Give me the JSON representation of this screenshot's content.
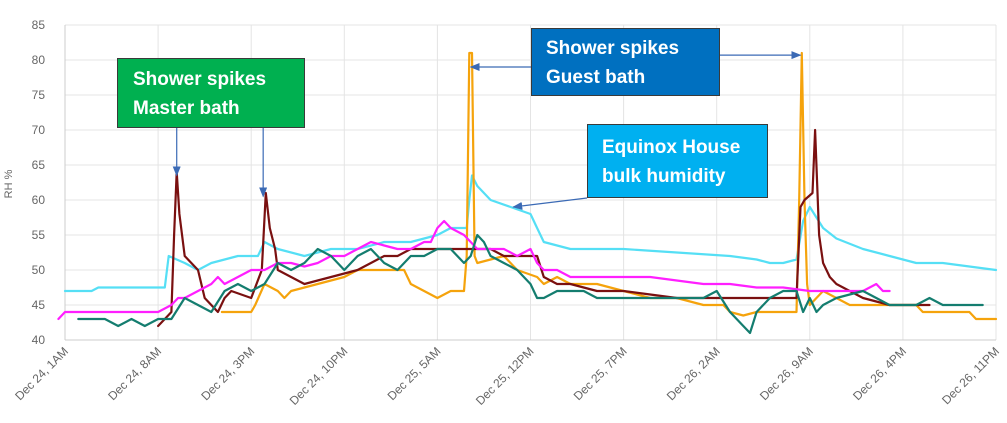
{
  "chart_data": {
    "type": "line",
    "title": "",
    "xlabel": "",
    "ylabel": "RH %",
    "ylim": [
      40,
      85
    ],
    "yticks": [
      40,
      45,
      50,
      55,
      60,
      65,
      70,
      75,
      80,
      85
    ],
    "xlim": [
      0,
      70
    ],
    "x_unit": "hours since Dec 24, 1AM",
    "xticks": [
      {
        "value": 0,
        "label": "Dec 24, 1AM"
      },
      {
        "value": 7,
        "label": "Dec 24, 8AM"
      },
      {
        "value": 14,
        "label": "Dec 24, 3PM"
      },
      {
        "value": 21,
        "label": "Dec 24, 10PM"
      },
      {
        "value": 28,
        "label": "Dec 25, 5AM"
      },
      {
        "value": 35,
        "label": "Dec 25, 12PM"
      },
      {
        "value": 42,
        "label": "Dec 25, 7PM"
      },
      {
        "value": 49,
        "label": "Dec 26, 2AM"
      },
      {
        "value": 56,
        "label": "Dec 26, 9AM"
      },
      {
        "value": 63,
        "label": "Dec 26, 4PM"
      },
      {
        "value": 70,
        "label": "Dec 26, 11PM"
      }
    ],
    "grid": true,
    "legend": "none",
    "series": [
      {
        "color": "#55dff5",
        "points": [
          [
            0,
            47
          ],
          [
            2,
            47
          ],
          [
            2.5,
            47.5
          ],
          [
            7.5,
            47.5
          ],
          [
            7.8,
            52
          ],
          [
            9,
            51
          ],
          [
            10,
            50
          ],
          [
            11,
            51
          ],
          [
            13,
            52
          ],
          [
            14.5,
            52
          ],
          [
            15,
            54
          ],
          [
            16,
            53
          ],
          [
            18,
            52
          ],
          [
            20,
            53
          ],
          [
            22,
            53
          ],
          [
            24,
            54
          ],
          [
            26,
            54
          ],
          [
            28,
            55
          ],
          [
            29,
            56
          ],
          [
            30.2,
            56
          ],
          [
            30.4,
            60
          ],
          [
            30.6,
            63.5
          ],
          [
            31,
            62
          ],
          [
            32,
            60
          ],
          [
            33.5,
            59
          ],
          [
            35,
            58
          ],
          [
            35.5,
            56
          ],
          [
            36,
            54
          ],
          [
            38,
            53
          ],
          [
            42,
            53
          ],
          [
            46,
            52.5
          ],
          [
            50,
            52
          ],
          [
            52,
            51.5
          ],
          [
            53,
            51
          ],
          [
            54,
            51
          ],
          [
            55,
            51.5
          ],
          [
            55.5,
            57
          ],
          [
            56,
            59
          ],
          [
            57,
            56
          ],
          [
            58,
            54.5
          ],
          [
            60,
            53
          ],
          [
            62,
            52
          ],
          [
            64,
            51
          ],
          [
            66,
            51
          ],
          [
            68,
            50.5
          ],
          [
            70,
            50
          ]
        ]
      },
      {
        "color": "#f5a30c",
        "points": [
          [
            11.8,
            44
          ],
          [
            13,
            44
          ],
          [
            14,
            44
          ],
          [
            14.3,
            45
          ],
          [
            15,
            48
          ],
          [
            16,
            47
          ],
          [
            16.5,
            46
          ],
          [
            17,
            47
          ],
          [
            19,
            48
          ],
          [
            21,
            49
          ],
          [
            22,
            50
          ],
          [
            24,
            50
          ],
          [
            25.5,
            50
          ],
          [
            26,
            48
          ],
          [
            27,
            47
          ],
          [
            28,
            46
          ],
          [
            29,
            47
          ],
          [
            30,
            47
          ],
          [
            30.2,
            52
          ],
          [
            30.4,
            81
          ],
          [
            30.6,
            81
          ],
          [
            30.8,
            52
          ],
          [
            31,
            51
          ],
          [
            33,
            52
          ],
          [
            34,
            50
          ],
          [
            35.5,
            49
          ],
          [
            36,
            48
          ],
          [
            37,
            49
          ],
          [
            38,
            48
          ],
          [
            40,
            48
          ],
          [
            42,
            47
          ],
          [
            44,
            46
          ],
          [
            46,
            46
          ],
          [
            48,
            45
          ],
          [
            49,
            45
          ],
          [
            49.5,
            45
          ],
          [
            50,
            44
          ],
          [
            51,
            43.5
          ],
          [
            52,
            44
          ],
          [
            54,
            44
          ],
          [
            55,
            44
          ],
          [
            55.2,
            60
          ],
          [
            55.4,
            81
          ],
          [
            55.6,
            60
          ],
          [
            55.8,
            48
          ],
          [
            56,
            45
          ],
          [
            57,
            47
          ],
          [
            58,
            46
          ],
          [
            59,
            45
          ],
          [
            62,
            45
          ],
          [
            64,
            45
          ],
          [
            64.5,
            44
          ],
          [
            68,
            44
          ],
          [
            68.5,
            43
          ],
          [
            70,
            43
          ]
        ]
      },
      {
        "color": "#7a1010",
        "points": [
          [
            7,
            42
          ],
          [
            7.5,
            43
          ],
          [
            8,
            44
          ],
          [
            8.2,
            55
          ],
          [
            8.4,
            64
          ],
          [
            8.6,
            58
          ],
          [
            9,
            52
          ],
          [
            10,
            50
          ],
          [
            10.5,
            46
          ],
          [
            11,
            45
          ],
          [
            11.5,
            44
          ],
          [
            12,
            46
          ],
          [
            12.5,
            47
          ],
          [
            14,
            46
          ],
          [
            14.8,
            50
          ],
          [
            15.1,
            61
          ],
          [
            15.4,
            56
          ],
          [
            15.8,
            53
          ],
          [
            16,
            50
          ],
          [
            17,
            49
          ],
          [
            18,
            48
          ],
          [
            19,
            48.5
          ],
          [
            20,
            49
          ],
          [
            22,
            50
          ],
          [
            23,
            51
          ],
          [
            24,
            52
          ],
          [
            25,
            52
          ],
          [
            26,
            53
          ],
          [
            27,
            53
          ],
          [
            28,
            53
          ],
          [
            29,
            53
          ],
          [
            29.5,
            53
          ],
          [
            30,
            53
          ],
          [
            31,
            53
          ],
          [
            32,
            53
          ],
          [
            33,
            52
          ],
          [
            34,
            52
          ],
          [
            35.5,
            52
          ],
          [
            36,
            49
          ],
          [
            37,
            48
          ],
          [
            38,
            48
          ],
          [
            40,
            47
          ],
          [
            42,
            47
          ],
          [
            44,
            46.5
          ],
          [
            46,
            46
          ],
          [
            47,
            46
          ],
          [
            48,
            46
          ],
          [
            49,
            46
          ],
          [
            50,
            46
          ],
          [
            51,
            46
          ],
          [
            52,
            46
          ],
          [
            53,
            46
          ],
          [
            54,
            46
          ],
          [
            55,
            46
          ],
          [
            55.3,
            59
          ],
          [
            55.6,
            60
          ],
          [
            56.2,
            61
          ],
          [
            56.4,
            70
          ],
          [
            56.7,
            55
          ],
          [
            57,
            51
          ],
          [
            57.5,
            49
          ],
          [
            58,
            48
          ],
          [
            59,
            47
          ],
          [
            60,
            46
          ],
          [
            61,
            45.5
          ],
          [
            62,
            45
          ],
          [
            64,
            45
          ],
          [
            65,
            45
          ]
        ]
      },
      {
        "color": "#ff1fff",
        "points": [
          [
            -0.5,
            43
          ],
          [
            0,
            44
          ],
          [
            3,
            44
          ],
          [
            5,
            44
          ],
          [
            6,
            44
          ],
          [
            7,
            44
          ],
          [
            8,
            45
          ],
          [
            8.5,
            46
          ],
          [
            9,
            46
          ],
          [
            10,
            47
          ],
          [
            11,
            48
          ],
          [
            11.5,
            49
          ],
          [
            12,
            48
          ],
          [
            13,
            49
          ],
          [
            14,
            50
          ],
          [
            15,
            50
          ],
          [
            16,
            51
          ],
          [
            17,
            51
          ],
          [
            18,
            50.5
          ],
          [
            19,
            51
          ],
          [
            20,
            52
          ],
          [
            21,
            52
          ],
          [
            22,
            53
          ],
          [
            23,
            54
          ],
          [
            24,
            53.5
          ],
          [
            25,
            53
          ],
          [
            26,
            53
          ],
          [
            27,
            54
          ],
          [
            27.5,
            54
          ],
          [
            28,
            56
          ],
          [
            28.5,
            57
          ],
          [
            29,
            56
          ],
          [
            30,
            55
          ],
          [
            30.5,
            54
          ],
          [
            31,
            53
          ],
          [
            32,
            53
          ],
          [
            33,
            53
          ],
          [
            34,
            52
          ],
          [
            35,
            53
          ],
          [
            35.5,
            51
          ],
          [
            36,
            50
          ],
          [
            37,
            50
          ],
          [
            38,
            49
          ],
          [
            40,
            49
          ],
          [
            44,
            49
          ],
          [
            48,
            48
          ],
          [
            50,
            48
          ],
          [
            52,
            47.5
          ],
          [
            54,
            47.5
          ],
          [
            56,
            47
          ],
          [
            58,
            47
          ],
          [
            60,
            47
          ],
          [
            61,
            48
          ],
          [
            61.5,
            47
          ],
          [
            62,
            47
          ]
        ]
      },
      {
        "color": "#147d6f",
        "points": [
          [
            1,
            43
          ],
          [
            3,
            43
          ],
          [
            4,
            42
          ],
          [
            5,
            43
          ],
          [
            6,
            42
          ],
          [
            7,
            43
          ],
          [
            8,
            43
          ],
          [
            9,
            46
          ],
          [
            10,
            45
          ],
          [
            11,
            44
          ],
          [
            12,
            47
          ],
          [
            13,
            48
          ],
          [
            14,
            47
          ],
          [
            15,
            48
          ],
          [
            16,
            51
          ],
          [
            17,
            50
          ],
          [
            18,
            51
          ],
          [
            19,
            53
          ],
          [
            20,
            52
          ],
          [
            21,
            50
          ],
          [
            22,
            52
          ],
          [
            23,
            53
          ],
          [
            24,
            51
          ],
          [
            25,
            50
          ],
          [
            26,
            52
          ],
          [
            27,
            52
          ],
          [
            28,
            53
          ],
          [
            29,
            53
          ],
          [
            30,
            51
          ],
          [
            30.5,
            52
          ],
          [
            31,
            55
          ],
          [
            31.5,
            54
          ],
          [
            32,
            52
          ],
          [
            33,
            51
          ],
          [
            34,
            50
          ],
          [
            35,
            48
          ],
          [
            35.5,
            46
          ],
          [
            36,
            46
          ],
          [
            37,
            47
          ],
          [
            38,
            47
          ],
          [
            39,
            47
          ],
          [
            40,
            46
          ],
          [
            42,
            46
          ],
          [
            44,
            46
          ],
          [
            46,
            46
          ],
          [
            48,
            46
          ],
          [
            49,
            47
          ],
          [
            50,
            44
          ],
          [
            51,
            42
          ],
          [
            51.5,
            41
          ],
          [
            52,
            44
          ],
          [
            53,
            46
          ],
          [
            54,
            47
          ],
          [
            55,
            47
          ],
          [
            55.5,
            44
          ],
          [
            56,
            46
          ],
          [
            56.5,
            44
          ],
          [
            57,
            45
          ],
          [
            58,
            46
          ],
          [
            60,
            47
          ],
          [
            61,
            46
          ],
          [
            62,
            45
          ],
          [
            63,
            45
          ],
          [
            64,
            45
          ],
          [
            65,
            46
          ],
          [
            66,
            45
          ],
          [
            68,
            45
          ],
          [
            69,
            45
          ]
        ]
      }
    ],
    "annotations": [
      {
        "id": "master",
        "lines": [
          "Shower spikes",
          "Master bath"
        ],
        "color": "#00b050",
        "arrows": [
          [
            8.4,
            63.5
          ],
          [
            14.9,
            60.5
          ]
        ]
      },
      {
        "id": "guest",
        "lines": [
          "Shower spikes",
          "Guest bath"
        ],
        "color": "#0070c0",
        "arrows": [
          [
            30.5,
            79
          ],
          [
            55.3,
            80.7
          ]
        ]
      },
      {
        "id": "bulk",
        "lines": [
          "Equinox House",
          "bulk humidity"
        ],
        "color": "#00b0f0",
        "arrows": [
          [
            33.7,
            59
          ]
        ]
      }
    ]
  }
}
